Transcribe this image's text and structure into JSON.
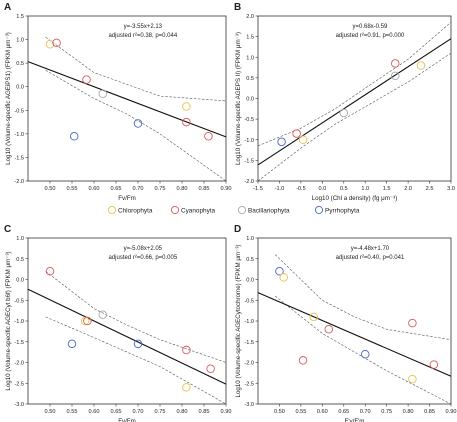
{
  "legend": [
    {
      "label": "Chlorophyta",
      "color": "#e6c34a"
    },
    {
      "label": "Cyanophyta",
      "color": "#d9585d"
    },
    {
      "label": "Bacillariophyta",
      "color": "#a9a9a9"
    },
    {
      "label": "Pyrrhophyta",
      "color": "#4a64c9"
    }
  ],
  "chart_data": [
    {
      "type": "scatter",
      "panel": "A",
      "equation": "y=-3.55x+2.13",
      "stats": "adjusted r²=0.38, p=0.044",
      "xlabel": "Fv/Fm",
      "ylabel": "Log10 (Volume-specific AGEiPS1) (FPKM μm⁻³)",
      "xlim": [
        0.45,
        0.9
      ],
      "ylim": [
        -2.0,
        1.5
      ],
      "xticks": [
        "0.50",
        "0.55",
        "0.60",
        "0.65",
        "0.70",
        "0.75",
        "0.80",
        "0.85",
        "0.90"
      ],
      "yticks": [
        "-2.0",
        "-1.5",
        "-1.0",
        "-0.5",
        "0.0",
        "0.5",
        "1.0",
        "1.5"
      ],
      "points": [
        {
          "x": 0.5,
          "y": 0.9,
          "group": "Chlorophyta"
        },
        {
          "x": 0.515,
          "y": 0.93,
          "group": "Cyanophyta"
        },
        {
          "x": 0.555,
          "y": -1.05,
          "group": "Pyrrhophyta"
        },
        {
          "x": 0.583,
          "y": 0.15,
          "group": "Cyanophyta"
        },
        {
          "x": 0.62,
          "y": -0.15,
          "group": "Bacillariophyta"
        },
        {
          "x": 0.7,
          "y": -0.78,
          "group": "Pyrrhophyta"
        },
        {
          "x": 0.81,
          "y": -0.42,
          "group": "Chlorophyta"
        },
        {
          "x": 0.81,
          "y": -0.75,
          "group": "Cyanophyta"
        },
        {
          "x": 0.86,
          "y": -1.05,
          "group": "Cyanophyta"
        }
      ],
      "fit": {
        "slope": -3.55,
        "intercept": 2.13
      },
      "ci": {
        "x": [
          0.49,
          0.6,
          0.675,
          0.75,
          0.9
        ],
        "upper": [
          1.05,
          0.3,
          0.05,
          -0.2,
          -0.3
        ],
        "lower": [
          0.35,
          -0.25,
          -0.58,
          -1.0,
          -2.0
        ]
      }
    },
    {
      "type": "scatter",
      "panel": "B",
      "equation": "y=0.68x-0.59",
      "stats": "adjusted r²=0.91, p=0.000",
      "xlabel": "Log10 (Chl a density) (fg μm⁻³)",
      "ylabel": "Log10 (Volume-specific AGEPS II) (FPKM μm⁻³)",
      "xlim": [
        -1.5,
        3.0
      ],
      "ylim": [
        -2.0,
        2.0
      ],
      "xticks": [
        "-1.5",
        "-1.0",
        "-0.5",
        "0.0",
        "0.5",
        "1.0",
        "1.5",
        "2.0",
        "2.5",
        "3.0"
      ],
      "yticks": [
        "-2.0",
        "-1.5",
        "-1.0",
        "-0.5",
        "0.0",
        "0.5",
        "1.0",
        "1.5",
        "2.0"
      ],
      "points": [
        {
          "x": -0.95,
          "y": -1.05,
          "group": "Pyrrhophyta"
        },
        {
          "x": -0.6,
          "y": -0.85,
          "group": "Cyanophyta"
        },
        {
          "x": -0.45,
          "y": -1.0,
          "group": "Chlorophyta"
        },
        {
          "x": 0.5,
          "y": -0.35,
          "group": "Bacillariophyta"
        },
        {
          "x": 1.7,
          "y": 0.55,
          "group": "Bacillariophyta"
        },
        {
          "x": 1.7,
          "y": 0.85,
          "group": "Cyanophyta"
        },
        {
          "x": 2.3,
          "y": 0.8,
          "group": "Chlorophyta"
        }
      ],
      "fit": {
        "slope": 0.68,
        "intercept": -0.59
      },
      "ci": {
        "x": [
          -1.5,
          -0.5,
          0.3,
          1.0,
          2.0,
          3.0
        ],
        "upper": [
          -1.15,
          -0.72,
          -0.25,
          0.25,
          0.95,
          1.85
        ],
        "lower": [
          -2.0,
          -1.2,
          -0.62,
          -0.2,
          0.4,
          1.1
        ]
      }
    },
    {
      "type": "scatter",
      "panel": "C",
      "equation": "y=-5.08x+2.05",
      "stats": "adjusted r²=0.66, p=0.005",
      "xlabel": "Fv/Fm",
      "ylabel": "Log10 (Volume-specific AGECyt b6f) (FPKM μm⁻³)",
      "xlim": [
        0.45,
        0.9
      ],
      "ylim": [
        -3.0,
        1.0
      ],
      "xticks": [
        "0.50",
        "0.55",
        "0.60",
        "0.65",
        "0.70",
        "0.75",
        "0.80",
        "0.85",
        "0.90"
      ],
      "yticks": [
        "-3.0",
        "-2.5",
        "-2.0",
        "-1.5",
        "-1.0",
        "-0.5",
        "0.0",
        "0.5",
        "1.0"
      ],
      "points": [
        {
          "x": 0.5,
          "y": 0.2,
          "group": "Cyanophyta"
        },
        {
          "x": 0.55,
          "y": -1.55,
          "group": "Pyrrhophyta"
        },
        {
          "x": 0.58,
          "y": -1.0,
          "group": "Chlorophyta"
        },
        {
          "x": 0.585,
          "y": -1.0,
          "group": "Cyanophyta"
        },
        {
          "x": 0.62,
          "y": -0.85,
          "group": "Bacillariophyta"
        },
        {
          "x": 0.7,
          "y": -1.55,
          "group": "Pyrrhophyta"
        },
        {
          "x": 0.81,
          "y": -1.7,
          "group": "Cyanophyta"
        },
        {
          "x": 0.81,
          "y": -2.6,
          "group": "Chlorophyta"
        },
        {
          "x": 0.865,
          "y": -2.15,
          "group": "Cyanophyta"
        }
      ],
      "fit": {
        "slope": -5.08,
        "intercept": 2.05
      },
      "ci": {
        "x": [
          0.49,
          0.6,
          0.675,
          0.75,
          0.9
        ],
        "upper": [
          0.2,
          -0.7,
          -1.1,
          -1.45,
          -2.0
        ],
        "lower": [
          -0.9,
          -1.4,
          -1.75,
          -2.1,
          -3.0
        ]
      }
    },
    {
      "type": "scatter",
      "panel": "D",
      "equation": "y=-4.48x+1.70",
      "stats": "adjusted r²=0.40, p=0.041",
      "xlabel": "F'v/F'm",
      "ylabel": "Log10 (Volume-specific AGECytochrome) (FPKM μm⁻³)",
      "xlim": [
        0.45,
        0.9
      ],
      "ylim": [
        -3.0,
        1.0
      ],
      "xticks": [
        "0.50",
        "0.55",
        "0.60",
        "0.65",
        "0.70",
        "0.75",
        "0.80",
        "0.85",
        "0.90"
      ],
      "yticks": [
        "-3.0",
        "-2.5",
        "-2.0",
        "-1.5",
        "-1.0",
        "-0.5",
        "0.0",
        "0.5",
        "1.0"
      ],
      "points": [
        {
          "x": 0.5,
          "y": 0.2,
          "group": "Pyrrhophyta"
        },
        {
          "x": 0.51,
          "y": 0.05,
          "group": "Chlorophyta"
        },
        {
          "x": 0.555,
          "y": -1.95,
          "group": "Cyanophyta"
        },
        {
          "x": 0.58,
          "y": -0.9,
          "group": "Chlorophyta"
        },
        {
          "x": 0.615,
          "y": -1.2,
          "group": "Cyanophyta"
        },
        {
          "x": 0.7,
          "y": -1.8,
          "group": "Pyrrhophyta"
        },
        {
          "x": 0.81,
          "y": -1.05,
          "group": "Cyanophyta"
        },
        {
          "x": 0.81,
          "y": -2.4,
          "group": "Chlorophyta"
        },
        {
          "x": 0.86,
          "y": -2.05,
          "group": "Cyanophyta"
        }
      ],
      "fit": {
        "slope": -4.48,
        "intercept": 1.7
      },
      "ci": {
        "x": [
          0.49,
          0.6,
          0.675,
          0.75,
          0.9
        ],
        "upper": [
          0.6,
          -0.5,
          -0.9,
          -1.2,
          -1.45
        ],
        "lower": [
          -0.4,
          -1.3,
          -1.75,
          -2.2,
          -3.0
        ]
      }
    }
  ]
}
